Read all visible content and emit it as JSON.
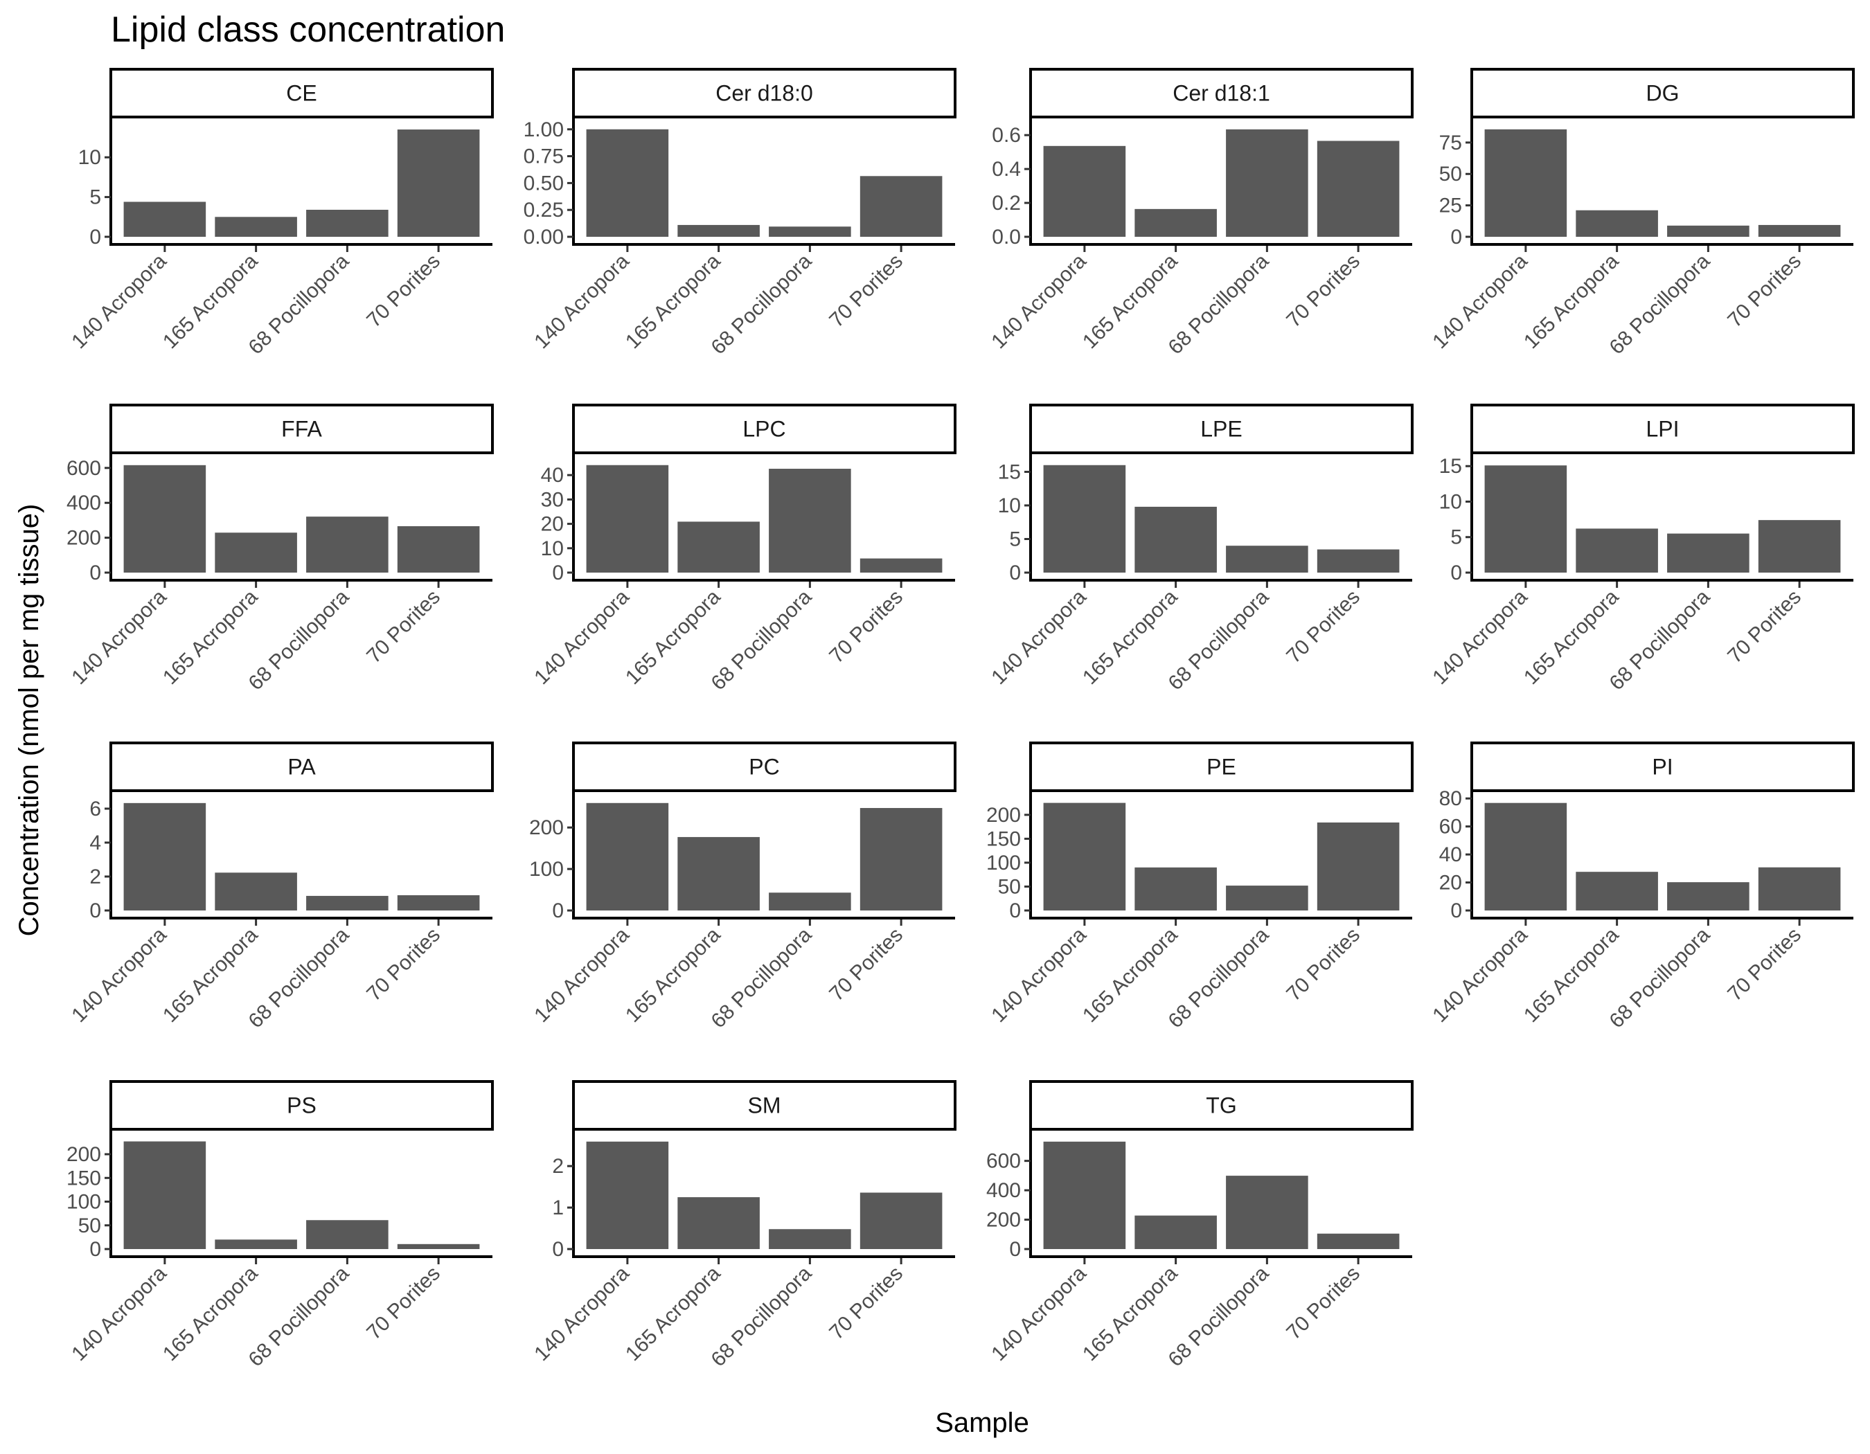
{
  "chart_data": {
    "type": "bar",
    "title": "Lipid class concentration",
    "xlabel": "Sample",
    "ylabel": "Concentration (nmol per mg tissue)",
    "categories": [
      "140 Acropora",
      "165 Acropora",
      "68 Pocillopora",
      "70 Porites"
    ],
    "bar_color": "#595959",
    "facets": [
      {
        "name": "CE",
        "values": [
          4.4,
          2.5,
          3.4,
          13.5
        ],
        "ylim": [
          0,
          14.2
        ],
        "ticks": [
          0,
          5,
          10
        ],
        "tick_labels": [
          "0",
          "5",
          "10"
        ]
      },
      {
        "name": "Cer d18:0",
        "values": [
          1.0,
          0.11,
          0.095,
          0.565
        ],
        "ylim": [
          0,
          1.05
        ],
        "ticks": [
          0,
          0.25,
          0.5,
          0.75,
          1.0
        ],
        "tick_labels": [
          "0.00",
          "0.25",
          "0.50",
          "0.75",
          "1.00"
        ]
      },
      {
        "name": "Cer d18:1",
        "values": [
          0.536,
          0.164,
          0.634,
          0.566
        ],
        "ylim": [
          0,
          0.666
        ],
        "ticks": [
          0,
          0.2,
          0.4,
          0.6
        ],
        "tick_labels": [
          "0.0",
          "0.2",
          "0.4",
          "0.6"
        ]
      },
      {
        "name": "DG",
        "values": [
          85.5,
          21.1,
          8.9,
          9.4
        ],
        "ylim": [
          0,
          89.8
        ],
        "ticks": [
          0,
          25,
          50,
          75
        ],
        "tick_labels": [
          "0",
          "25",
          "50",
          "75"
        ]
      },
      {
        "name": "FFA",
        "values": [
          616,
          229,
          321,
          266
        ],
        "ylim": [
          0,
          647
        ],
        "ticks": [
          0,
          200,
          400,
          600
        ],
        "tick_labels": [
          "0",
          "200",
          "400",
          "600"
        ]
      },
      {
        "name": "LPC",
        "values": [
          44.1,
          20.9,
          42.6,
          5.8
        ],
        "ylim": [
          0,
          46.3
        ],
        "ticks": [
          0,
          10,
          20,
          30,
          40
        ],
        "tick_labels": [
          "0",
          "10",
          "20",
          "30",
          "40"
        ]
      },
      {
        "name": "LPE",
        "values": [
          16.0,
          9.8,
          4.0,
          3.45
        ],
        "ylim": [
          0,
          16.8
        ],
        "ticks": [
          0,
          5,
          10,
          15
        ],
        "tick_labels": [
          "0",
          "5",
          "10",
          "15"
        ]
      },
      {
        "name": "LPI",
        "values": [
          15.1,
          6.2,
          5.5,
          7.4
        ],
        "ylim": [
          0,
          15.9
        ],
        "ticks": [
          0,
          5,
          10,
          15
        ],
        "tick_labels": [
          "0",
          "5",
          "10",
          "15"
        ]
      },
      {
        "name": "PA",
        "values": [
          6.33,
          2.23,
          0.86,
          0.9
        ],
        "ylim": [
          0,
          6.65
        ],
        "ticks": [
          0,
          2,
          4,
          6
        ],
        "tick_labels": [
          "0",
          "2",
          "4",
          "6"
        ]
      },
      {
        "name": "PC",
        "values": [
          259,
          177,
          43,
          247
        ],
        "ylim": [
          0,
          272
        ],
        "ticks": [
          0,
          100,
          200
        ],
        "tick_labels": [
          "0",
          "100",
          "200"
        ]
      },
      {
        "name": "PE",
        "values": [
          225,
          90,
          52,
          184
        ],
        "ylim": [
          0,
          236
        ],
        "ticks": [
          0,
          50,
          100,
          150,
          200
        ],
        "tick_labels": [
          "0",
          "50",
          "100",
          "150",
          "200"
        ]
      },
      {
        "name": "PI",
        "values": [
          76.8,
          27.6,
          20.2,
          30.8
        ],
        "ylim": [
          0,
          80.6
        ],
        "ticks": [
          0,
          20,
          40,
          60,
          80
        ],
        "tick_labels": [
          "0",
          "20",
          "40",
          "60",
          "80"
        ]
      },
      {
        "name": "PS",
        "values": [
          227,
          20,
          61,
          10.5
        ],
        "ylim": [
          0,
          238
        ],
        "ticks": [
          0,
          50,
          100,
          150,
          200
        ],
        "tick_labels": [
          "0",
          "50",
          "100",
          "150",
          "200"
        ]
      },
      {
        "name": "SM",
        "values": [
          2.59,
          1.25,
          0.48,
          1.36
        ],
        "ylim": [
          0,
          2.72
        ],
        "ticks": [
          0,
          1,
          2
        ],
        "tick_labels": [
          "0",
          "1",
          "2"
        ]
      },
      {
        "name": "TG",
        "values": [
          731,
          228,
          499,
          105
        ],
        "ylim": [
          0,
          768
        ],
        "ticks": [
          0,
          200,
          400,
          600
        ],
        "tick_labels": [
          "0",
          "200",
          "400",
          "600"
        ]
      }
    ],
    "grid": false,
    "ncol": 4
  }
}
